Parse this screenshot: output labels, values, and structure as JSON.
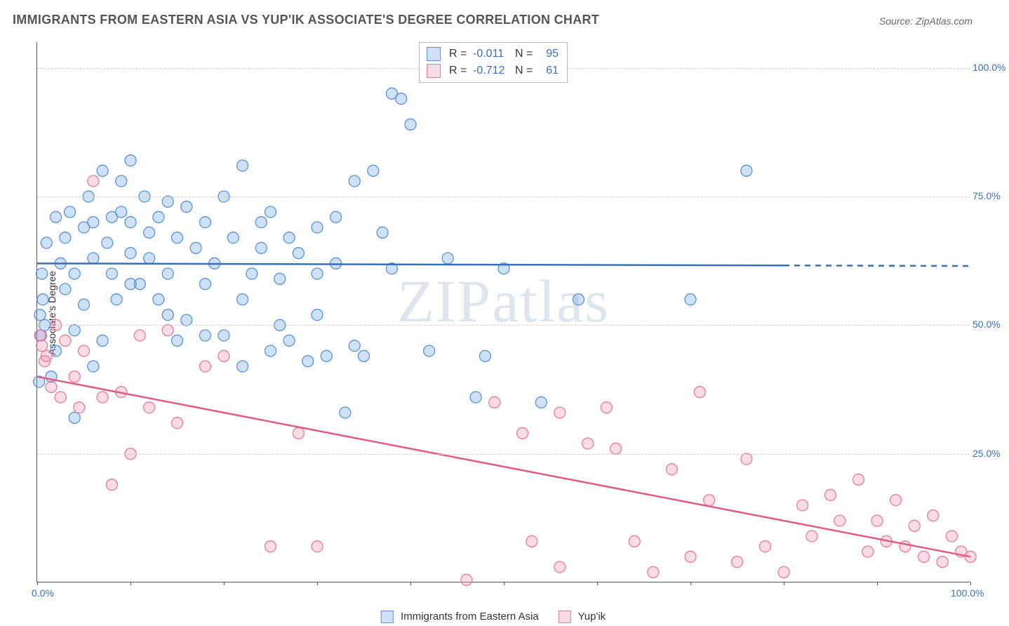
{
  "title": "IMMIGRANTS FROM EASTERN ASIA VS YUP'IK ASSOCIATE'S DEGREE CORRELATION CHART",
  "source": "Source: ZipAtlas.com",
  "watermark_a": "ZIP",
  "watermark_b": "atlas",
  "ylabel": "Associate's Degree",
  "chart": {
    "type": "scatter",
    "background": "#ffffff",
    "grid_color": "#d0d0d0",
    "axis_color": "#555555",
    "tick_label_color": "#3b6fb6",
    "xlim": [
      0,
      100
    ],
    "ylim": [
      0,
      105
    ],
    "x_ticks": [
      0,
      10,
      20,
      30,
      40,
      50,
      60,
      70,
      80,
      90,
      100
    ],
    "x_tick_labels": {
      "0": "0.0%",
      "100": "100.0%"
    },
    "y_gridlines": [
      25,
      50,
      75,
      100
    ],
    "y_tick_labels": {
      "25": "25.0%",
      "50": "50.0%",
      "75": "75.0%",
      "100": "100.0%"
    },
    "marker_radius": 8,
    "marker_stroke_width": 1.3,
    "trend_line_width": 2.5,
    "series": [
      {
        "id": "eastern_asia",
        "label": "Immigrants from Eastern Asia",
        "fill": "rgba(117, 170, 229, 0.35)",
        "stroke": "#5a93d6",
        "line_color": "#3b6fb6",
        "R": "-0.011",
        "N": "95",
        "trend": {
          "y_at_x0": 62.0,
          "y_at_x100": 61.5,
          "solid_until_x": 80
        },
        "points": [
          [
            0.2,
            39
          ],
          [
            0.3,
            52
          ],
          [
            0.4,
            48
          ],
          [
            0.5,
            60
          ],
          [
            0.6,
            55
          ],
          [
            0.8,
            50
          ],
          [
            1,
            66
          ],
          [
            1.5,
            40
          ],
          [
            2,
            71
          ],
          [
            2.5,
            62
          ],
          [
            3,
            57
          ],
          [
            3,
            67
          ],
          [
            3.5,
            72
          ],
          [
            4,
            49
          ],
          [
            4,
            60
          ],
          [
            5,
            69
          ],
          [
            5,
            54
          ],
          [
            5.5,
            75
          ],
          [
            6,
            63
          ],
          [
            6,
            70
          ],
          [
            7,
            80
          ],
          [
            7,
            47
          ],
          [
            7.5,
            66
          ],
          [
            8,
            71
          ],
          [
            8,
            60
          ],
          [
            8.5,
            55
          ],
          [
            9,
            72
          ],
          [
            9,
            78
          ],
          [
            10,
            64
          ],
          [
            10,
            70
          ],
          [
            10,
            82
          ],
          [
            11,
            58
          ],
          [
            11.5,
            75
          ],
          [
            12,
            68
          ],
          [
            12,
            63
          ],
          [
            13,
            55
          ],
          [
            13,
            71
          ],
          [
            14,
            74
          ],
          [
            14,
            60
          ],
          [
            15,
            67
          ],
          [
            15,
            47
          ],
          [
            16,
            73
          ],
          [
            16,
            51
          ],
          [
            17,
            65
          ],
          [
            18,
            70
          ],
          [
            18,
            58
          ],
          [
            19,
            62
          ],
          [
            20,
            75
          ],
          [
            20,
            48
          ],
          [
            21,
            67
          ],
          [
            22,
            81
          ],
          [
            22,
            55
          ],
          [
            23,
            60
          ],
          [
            24,
            70
          ],
          [
            24,
            65
          ],
          [
            25,
            45
          ],
          [
            25,
            72
          ],
          [
            26,
            59
          ],
          [
            27,
            47
          ],
          [
            27,
            67
          ],
          [
            28,
            64
          ],
          [
            29,
            43
          ],
          [
            30,
            69
          ],
          [
            30,
            60
          ],
          [
            31,
            44
          ],
          [
            32,
            62
          ],
          [
            32,
            71
          ],
          [
            33,
            33
          ],
          [
            34,
            78
          ],
          [
            34,
            46
          ],
          [
            35,
            44
          ],
          [
            36,
            80
          ],
          [
            37,
            68
          ],
          [
            38,
            95
          ],
          [
            38,
            61
          ],
          [
            39,
            94
          ],
          [
            40,
            89
          ],
          [
            42,
            45
          ],
          [
            44,
            63
          ],
          [
            47,
            36
          ],
          [
            48,
            44
          ],
          [
            50,
            61
          ],
          [
            54,
            35
          ],
          [
            58,
            55
          ],
          [
            70,
            55
          ],
          [
            76,
            80
          ],
          [
            2,
            45
          ],
          [
            4,
            32
          ],
          [
            6,
            42
          ],
          [
            10,
            58
          ],
          [
            14,
            52
          ],
          [
            18,
            48
          ],
          [
            22,
            42
          ],
          [
            26,
            50
          ],
          [
            30,
            52
          ]
        ]
      },
      {
        "id": "yupik",
        "label": "Yup'ik",
        "fill": "rgba(240, 140, 170, 0.30)",
        "stroke": "#e77aa0",
        "line_color": "#e05a8a",
        "R": "-0.712",
        "N": "61",
        "trend": {
          "y_at_x0": 40.0,
          "y_at_x100": 5.0,
          "solid_until_x": 100
        },
        "points": [
          [
            0.3,
            48
          ],
          [
            0.5,
            46
          ],
          [
            0.8,
            43
          ],
          [
            1,
            44
          ],
          [
            1.5,
            38
          ],
          [
            2,
            50
          ],
          [
            2.5,
            36
          ],
          [
            3,
            47
          ],
          [
            4,
            40
          ],
          [
            4.5,
            34
          ],
          [
            5,
            45
          ],
          [
            6,
            78
          ],
          [
            7,
            36
          ],
          [
            8,
            19
          ],
          [
            9,
            37
          ],
          [
            10,
            25
          ],
          [
            11,
            48
          ],
          [
            12,
            34
          ],
          [
            14,
            49
          ],
          [
            15,
            31
          ],
          [
            18,
            42
          ],
          [
            20,
            44
          ],
          [
            25,
            7
          ],
          [
            28,
            29
          ],
          [
            30,
            7
          ],
          [
            46,
            0.5
          ],
          [
            49,
            35
          ],
          [
            52,
            29
          ],
          [
            53,
            8
          ],
          [
            56,
            33
          ],
          [
            56,
            3
          ],
          [
            59,
            27
          ],
          [
            61,
            34
          ],
          [
            62,
            26
          ],
          [
            64,
            8
          ],
          [
            66,
            2
          ],
          [
            68,
            22
          ],
          [
            70,
            5
          ],
          [
            71,
            37
          ],
          [
            72,
            16
          ],
          [
            75,
            4
          ],
          [
            76,
            24
          ],
          [
            78,
            7
          ],
          [
            80,
            2
          ],
          [
            82,
            15
          ],
          [
            83,
            9
          ],
          [
            85,
            17
          ],
          [
            86,
            12
          ],
          [
            88,
            20
          ],
          [
            89,
            6
          ],
          [
            90,
            12
          ],
          [
            91,
            8
          ],
          [
            92,
            16
          ],
          [
            93,
            7
          ],
          [
            94,
            11
          ],
          [
            95,
            5
          ],
          [
            96,
            13
          ],
          [
            97,
            4
          ],
          [
            98,
            9
          ],
          [
            99,
            6
          ],
          [
            100,
            5
          ]
        ]
      }
    ]
  }
}
